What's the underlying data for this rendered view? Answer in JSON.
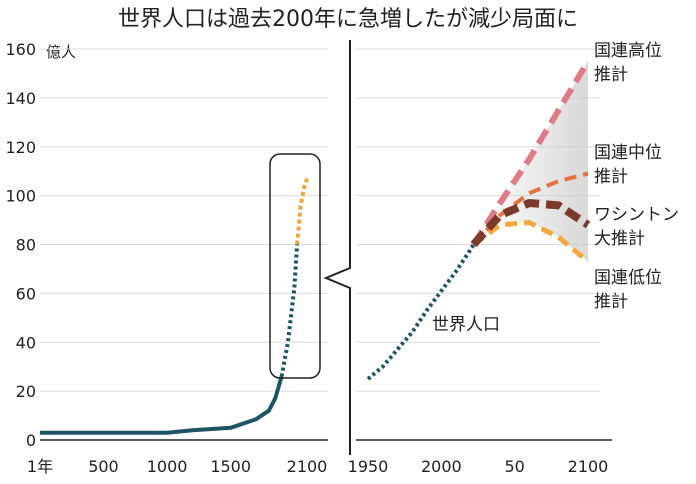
{
  "chart_data": {
    "title": "世界人口は過去200年に急増したが減少局面に",
    "unit": "億人",
    "type": "line",
    "ylim": [
      0,
      160
    ],
    "yticks": [
      "0",
      "20",
      "40",
      "60",
      "80",
      "100",
      "120",
      "140",
      "160"
    ],
    "colors": {
      "history": "#1d5566",
      "projection": "#f0a63c",
      "un_high": "#de7b86",
      "un_mid": "#e4733f",
      "wa": "#7a3a2c",
      "un_low": "#f3a93e",
      "band": "#cccccc"
    },
    "left_panel": {
      "xticks": [
        "1年",
        "500",
        "1000",
        "1500",
        "2100"
      ],
      "xtick_values": [
        1,
        500,
        1000,
        1500,
        2100
      ],
      "xlim": [
        1,
        2200
      ],
      "history": {
        "x": [
          1,
          500,
          1000,
          1200,
          1500,
          1700,
          1800,
          1850,
          1900,
          1950,
          2000,
          2022
        ],
        "y": [
          3,
          3,
          3,
          4,
          5,
          8.5,
          12,
          17,
          26,
          40,
          62,
          80
        ]
      },
      "projection": {
        "x": [
          2022,
          2050,
          2080,
          2100
        ],
        "y": [
          80,
          96,
          104,
          107
        ]
      }
    },
    "right_panel": {
      "xticks": [
        "1950",
        "2000",
        "50",
        "2100"
      ],
      "xtick_values": [
        1950,
        2000,
        2050,
        2100
      ],
      "xlim": [
        1950,
        2100
      ],
      "world": {
        "name": "世界人口",
        "x": [
          1950,
          1960,
          1970,
          1980,
          1990,
          2000,
          2010,
          2020,
          2022
        ],
        "y": [
          25,
          30,
          37,
          44,
          53,
          61,
          69,
          78,
          80
        ]
      },
      "un_high": {
        "name": "国連高位推計",
        "x": [
          2022,
          2040,
          2060,
          2080,
          2100
        ],
        "y": [
          80,
          97,
          115,
          135,
          155
        ]
      },
      "un_mid": {
        "name": "国連中位推計",
        "x": [
          2022,
          2040,
          2060,
          2080,
          2100
        ],
        "y": [
          80,
          92,
          101,
          106,
          109
        ]
      },
      "wa": {
        "name": "ワシントン大推計",
        "x": [
          2022,
          2040,
          2060,
          2080,
          2100
        ],
        "y": [
          80,
          92,
          97,
          96,
          88
        ]
      },
      "un_low": {
        "name": "国連低位推計",
        "x": [
          2022,
          2040,
          2060,
          2080,
          2100
        ],
        "y": [
          80,
          88,
          89,
          83,
          73
        ]
      }
    }
  }
}
